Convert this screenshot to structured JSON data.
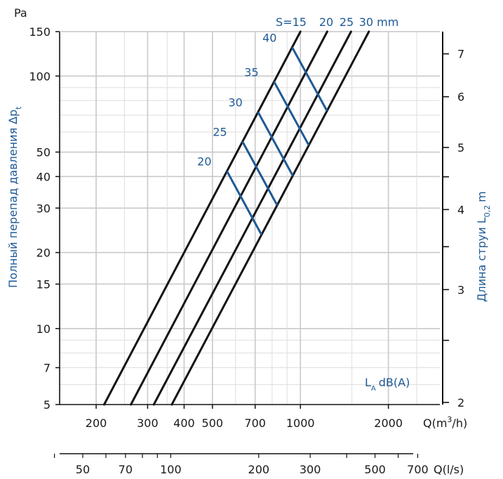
{
  "chart_data": {
    "type": "line",
    "y_unit": "Pa",
    "ylabel": "Полный перепад давления ∆p",
    "ylabel_sub": "t",
    "ylabel_right": "Длина струи L",
    "ylabel_right_sub": "0,2",
    "ylabel_right_unit": "m",
    "xlabel": "Q(m",
    "xlabel_sup": "3",
    "xlabel_tail": "/h)",
    "xlabel2": "Q(l/s)",
    "ylim": [
      5,
      150
    ],
    "xlim": [
      150,
      3000
    ],
    "y_ticks": [
      "150",
      "100",
      "50",
      "40",
      "30",
      "20",
      "15",
      "10",
      "7",
      "5"
    ],
    "x_ticks": [
      "200",
      "300",
      "400",
      "500",
      "700",
      "1000",
      "2000"
    ],
    "x2_ticks": [
      "50",
      "70",
      "100",
      "200",
      "300",
      "500",
      "700"
    ],
    "right_ticks": [
      "7",
      "6",
      "5",
      "4",
      "3",
      "2"
    ],
    "series_label_prefix": "S=15",
    "series_labels": [
      "20",
      "25",
      "30 mm"
    ],
    "series": [
      {
        "name": "S=15",
        "x": [
          213,
          1000
        ],
        "y": [
          5,
          150
        ]
      },
      {
        "name": "20",
        "x": [
          263,
          1235
        ],
        "y": [
          5,
          150
        ]
      },
      {
        "name": "25",
        "x": [
          315,
          1490
        ],
        "y": [
          5,
          150
        ]
      },
      {
        "name": "30 mm",
        "x": [
          363,
          1715
        ],
        "y": [
          5,
          150
        ]
      }
    ],
    "noise_levels": [
      {
        "label": "20",
        "q_start": 577,
        "p_start": 42
      },
      {
        "label": "25",
        "q_start": 660,
        "p_start": 55
      },
      {
        "label": "30",
        "q_start": 750,
        "p_start": 72
      },
      {
        "label": "35",
        "q_start": 840,
        "p_start": 95
      },
      {
        "label": "40",
        "q_start": 1000,
        "p_start": 130
      }
    ],
    "noise_label": "L",
    "noise_label_sub": "A",
    "noise_label_tail": "dB(A)"
  }
}
